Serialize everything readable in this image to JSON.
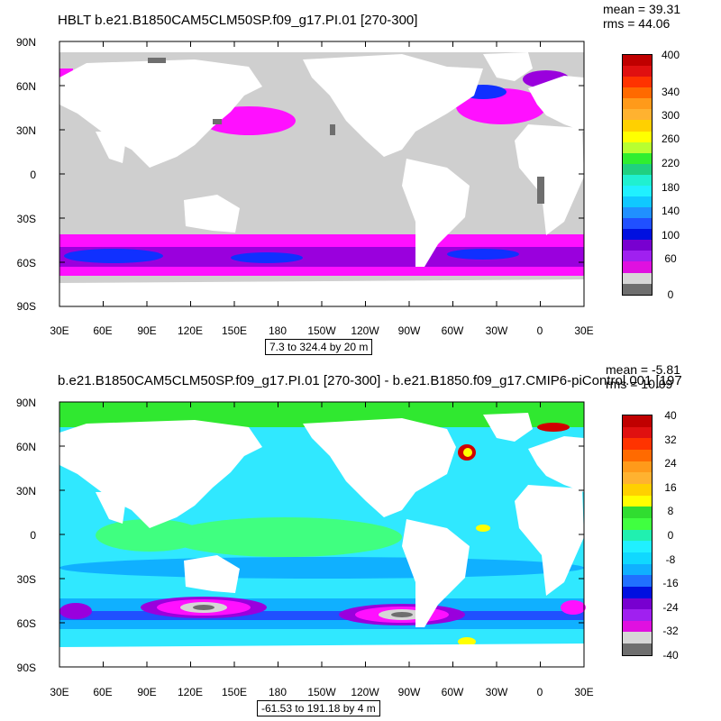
{
  "panels": [
    {
      "title": "HBLT b.e21.B1850CAM5CLM50SP.f09_g17.PI.01 [270-300]",
      "mean": "mean = 39.31",
      "rms": "rms = 44.06",
      "caption": "7.3 to 324.4 by 20 m",
      "colorbar": {
        "colors": [
          "#c00000",
          "#e01010",
          "#ff3300",
          "#ff6a00",
          "#ff9a1a",
          "#ffb230",
          "#ffd000",
          "#ffff00",
          "#b8ff30",
          "#30ee30",
          "#20d080",
          "#20f0d0",
          "#20f0ff",
          "#10c8ff",
          "#2090ff",
          "#2050ff",
          "#0010e0",
          "#7800d0",
          "#a020f0",
          "#e010e0",
          "#d6d6d6",
          "#6e6e6e"
        ],
        "labels": [
          "400",
          "340",
          "300",
          "260",
          "220",
          "180",
          "140",
          "100",
          "60",
          "0"
        ]
      }
    },
    {
      "title": "b.e21.B1850CAM5CLM50SP.f09_g17.PI.01 [270-300] - b.e21.B1850.f09_g17.CMIP6-piControl.001 [197",
      "mean": "mean = -5.81",
      "rms": "rms = 10.09",
      "caption": "-61.53 to 191.18 by 4 m",
      "colorbar": {
        "colors": [
          "#c00000",
          "#e01010",
          "#ff3300",
          "#ff6a00",
          "#ff9a1a",
          "#ffb230",
          "#ffd000",
          "#ffff00",
          "#30dd30",
          "#40ff40",
          "#20f0b0",
          "#20f0ff",
          "#10d8ff",
          "#10b0ff",
          "#2070ff",
          "#0010e0",
          "#7800d0",
          "#a020f0",
          "#e010e0",
          "#d6d6d6",
          "#6e6e6e"
        ],
        "labels": [
          "40",
          "32",
          "24",
          "16",
          "8",
          "0",
          "-8",
          "-16",
          "-24",
          "-32",
          "-40"
        ]
      }
    }
  ],
  "lat_labels": [
    "90N",
    "60N",
    "30N",
    "0",
    "30S",
    "60S",
    "90S"
  ],
  "lon_labels": [
    "30E",
    "60E",
    "90E",
    "120E",
    "150E",
    "180",
    "150W",
    "120W",
    "90W",
    "60W",
    "30W",
    "0",
    "30E"
  ],
  "colors": {
    "ocean_gray": "#cfcfcf",
    "dark_gray": "#6e6e6e",
    "magenta": "#ff10ff",
    "purple": "#9a00dd",
    "blue": "#1030ff",
    "cyan": "#30e8ff",
    "green": "#30e830",
    "red": "#d00000",
    "yellow": "#ffff00"
  }
}
